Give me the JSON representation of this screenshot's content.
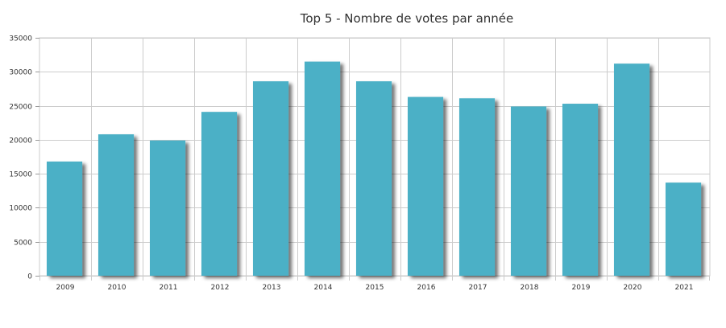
{
  "chart_data": {
    "type": "bar",
    "title": "Top 5 - Nombre de votes par année",
    "categories": [
      "2009",
      "2010",
      "2011",
      "2012",
      "2013",
      "2014",
      "2015",
      "2016",
      "2017",
      "2018",
      "2019",
      "2020",
      "2021"
    ],
    "series": [
      {
        "values": [
          16800,
          20800,
          19900,
          24100,
          28600,
          31500,
          28600,
          26300,
          26100,
          24900,
          25300,
          31200,
          13700
        ]
      }
    ],
    "ylim": [
      0,
      35000
    ],
    "yticks": [
      0,
      5000,
      10000,
      15000,
      20000,
      25000,
      30000,
      35000
    ],
    "grid": true,
    "legend": "none",
    "bar_color": "#4bb0c6",
    "shadow_color": "#888888",
    "grid_color": "#cccccc"
  }
}
